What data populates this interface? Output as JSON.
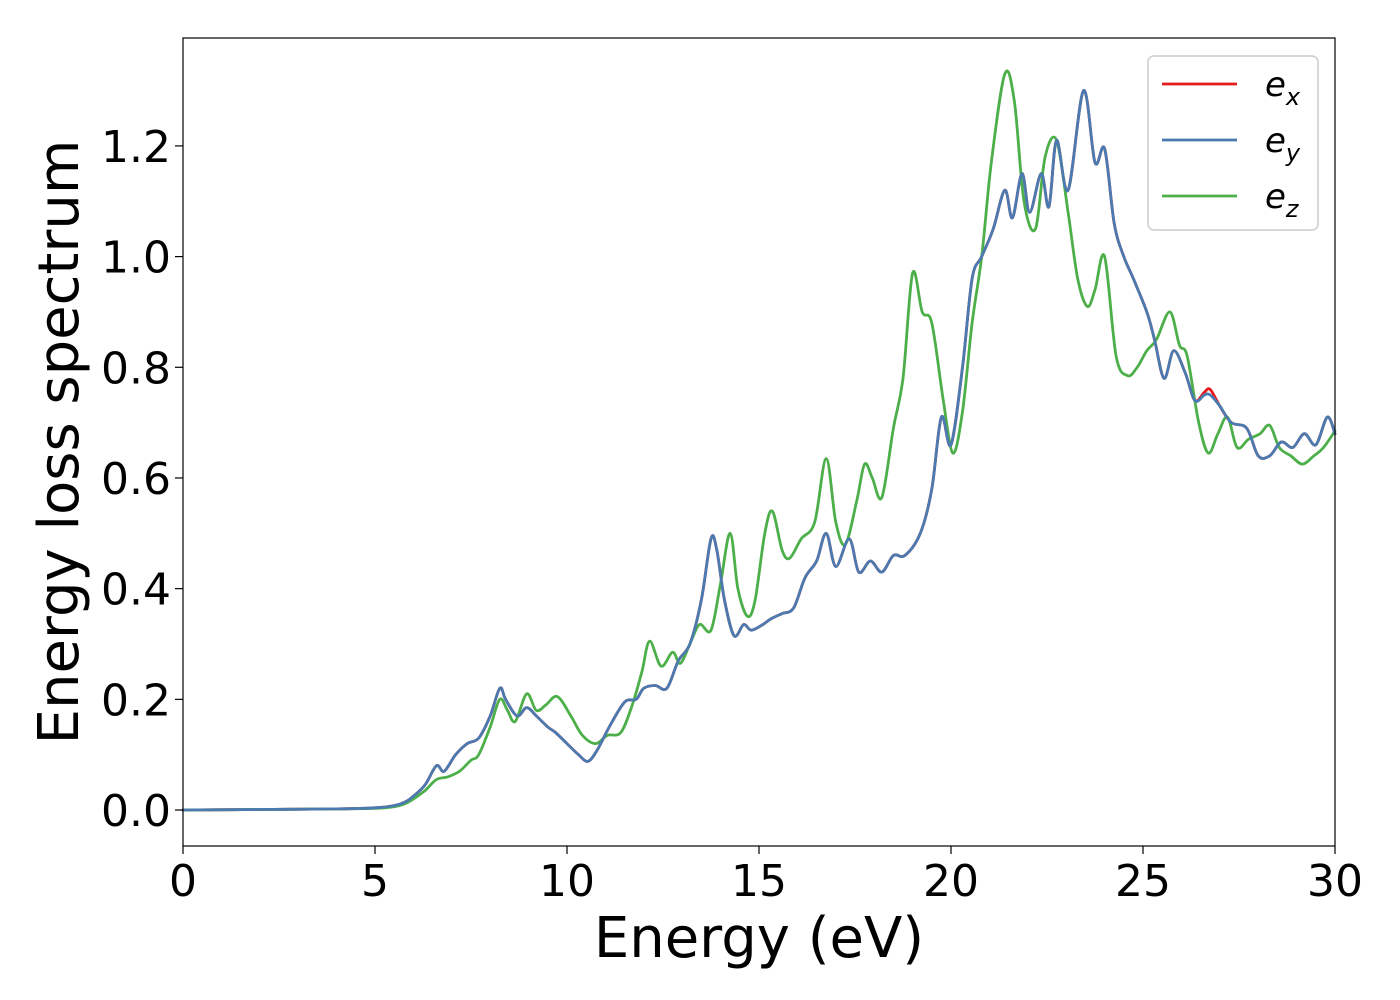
{
  "chart_data": {
    "type": "line",
    "title": "",
    "xlabel": "Energy (eV)",
    "ylabel": "Energy loss spectrum",
    "xlim": [
      0,
      30
    ],
    "ylim": [
      -0.065,
      1.395
    ],
    "xticks": [
      0,
      5,
      10,
      15,
      20,
      25,
      30
    ],
    "xtick_labels": [
      "0",
      "5",
      "10",
      "15",
      "20",
      "25",
      "30"
    ],
    "yticks": [
      0.0,
      0.2,
      0.4,
      0.6,
      0.8,
      1.0,
      1.2
    ],
    "ytick_labels": [
      "0.0",
      "0.2",
      "0.4",
      "0.6",
      "0.8",
      "1.0",
      "1.2"
    ],
    "grid": false,
    "legend_position": "top-right",
    "series": [
      {
        "name": "e_x",
        "legend_base": "e",
        "legend_sub": "x",
        "color": "#e41a1c",
        "points": [
          [
            0,
            0
          ],
          [
            2,
            0.001
          ],
          [
            4,
            0.002
          ],
          [
            5,
            0.004
          ],
          [
            5.5,
            0.008
          ],
          [
            5.8,
            0.015
          ],
          [
            6,
            0.025
          ],
          [
            6.3,
            0.045
          ],
          [
            6.6,
            0.08
          ],
          [
            6.8,
            0.07
          ],
          [
            7.1,
            0.1
          ],
          [
            7.4,
            0.12
          ],
          [
            7.7,
            0.13
          ],
          [
            8,
            0.17
          ],
          [
            8.25,
            0.22
          ],
          [
            8.4,
            0.2
          ],
          [
            8.7,
            0.17
          ],
          [
            8.95,
            0.185
          ],
          [
            9.2,
            0.17
          ],
          [
            9.5,
            0.15
          ],
          [
            9.7,
            0.14
          ],
          [
            10,
            0.12
          ],
          [
            10.3,
            0.1
          ],
          [
            10.55,
            0.088
          ],
          [
            10.8,
            0.11
          ],
          [
            11.1,
            0.15
          ],
          [
            11.5,
            0.195
          ],
          [
            11.8,
            0.2
          ],
          [
            12,
            0.22
          ],
          [
            12.3,
            0.225
          ],
          [
            12.6,
            0.22
          ],
          [
            12.9,
            0.27
          ],
          [
            13.2,
            0.3
          ],
          [
            13.5,
            0.38
          ],
          [
            13.75,
            0.49
          ],
          [
            13.9,
            0.47
          ],
          [
            14.1,
            0.38
          ],
          [
            14.35,
            0.315
          ],
          [
            14.6,
            0.335
          ],
          [
            14.8,
            0.325
          ],
          [
            15.1,
            0.335
          ],
          [
            15.3,
            0.345
          ],
          [
            15.6,
            0.355
          ],
          [
            15.9,
            0.365
          ],
          [
            16.2,
            0.42
          ],
          [
            16.5,
            0.45
          ],
          [
            16.75,
            0.5
          ],
          [
            17,
            0.44
          ],
          [
            17.35,
            0.49
          ],
          [
            17.6,
            0.43
          ],
          [
            17.9,
            0.45
          ],
          [
            18.2,
            0.43
          ],
          [
            18.5,
            0.46
          ],
          [
            18.8,
            0.46
          ],
          [
            19.2,
            0.5
          ],
          [
            19.5,
            0.58
          ],
          [
            19.75,
            0.71
          ],
          [
            20,
            0.66
          ],
          [
            20.3,
            0.8
          ],
          [
            20.55,
            0.96
          ],
          [
            20.8,
            1.0
          ],
          [
            21.1,
            1.05
          ],
          [
            21.4,
            1.12
          ],
          [
            21.6,
            1.07
          ],
          [
            21.85,
            1.15
          ],
          [
            22.05,
            1.08
          ],
          [
            22.35,
            1.15
          ],
          [
            22.55,
            1.09
          ],
          [
            22.75,
            1.21
          ],
          [
            23.05,
            1.12
          ],
          [
            23.45,
            1.3
          ],
          [
            23.75,
            1.17
          ],
          [
            24,
            1.195
          ],
          [
            24.25,
            1.06
          ],
          [
            24.5,
            1.0
          ],
          [
            24.75,
            0.96
          ],
          [
            25.1,
            0.9
          ],
          [
            25.3,
            0.85
          ],
          [
            25.55,
            0.78
          ],
          [
            25.8,
            0.83
          ],
          [
            26.1,
            0.79
          ],
          [
            26.35,
            0.74
          ],
          [
            26.6,
            0.755
          ],
          [
            26.75,
            0.76
          ],
          [
            27,
            0.73
          ],
          [
            27.3,
            0.7
          ],
          [
            27.7,
            0.69
          ],
          [
            28,
            0.64
          ],
          [
            28.3,
            0.64
          ],
          [
            28.6,
            0.665
          ],
          [
            28.9,
            0.655
          ],
          [
            29.2,
            0.68
          ],
          [
            29.5,
            0.66
          ],
          [
            29.8,
            0.71
          ],
          [
            30,
            0.68
          ]
        ]
      },
      {
        "name": "e_y",
        "legend_base": "e",
        "legend_sub": "y",
        "color": "#4a7ab0",
        "points": [
          [
            0,
            0
          ],
          [
            2,
            0.001
          ],
          [
            4,
            0.002
          ],
          [
            5,
            0.004
          ],
          [
            5.5,
            0.008
          ],
          [
            5.8,
            0.015
          ],
          [
            6,
            0.025
          ],
          [
            6.3,
            0.045
          ],
          [
            6.6,
            0.08
          ],
          [
            6.8,
            0.07
          ],
          [
            7.1,
            0.1
          ],
          [
            7.4,
            0.12
          ],
          [
            7.7,
            0.13
          ],
          [
            8,
            0.17
          ],
          [
            8.25,
            0.22
          ],
          [
            8.4,
            0.2
          ],
          [
            8.7,
            0.17
          ],
          [
            8.95,
            0.185
          ],
          [
            9.2,
            0.17
          ],
          [
            9.5,
            0.15
          ],
          [
            9.7,
            0.14
          ],
          [
            10,
            0.12
          ],
          [
            10.3,
            0.1
          ],
          [
            10.55,
            0.088
          ],
          [
            10.8,
            0.11
          ],
          [
            11.1,
            0.15
          ],
          [
            11.5,
            0.195
          ],
          [
            11.8,
            0.2
          ],
          [
            12,
            0.22
          ],
          [
            12.3,
            0.225
          ],
          [
            12.6,
            0.22
          ],
          [
            12.9,
            0.27
          ],
          [
            13.2,
            0.3
          ],
          [
            13.5,
            0.38
          ],
          [
            13.75,
            0.49
          ],
          [
            13.9,
            0.47
          ],
          [
            14.1,
            0.38
          ],
          [
            14.35,
            0.315
          ],
          [
            14.6,
            0.335
          ],
          [
            14.8,
            0.325
          ],
          [
            15.1,
            0.335
          ],
          [
            15.3,
            0.345
          ],
          [
            15.6,
            0.355
          ],
          [
            15.9,
            0.365
          ],
          [
            16.2,
            0.42
          ],
          [
            16.5,
            0.45
          ],
          [
            16.75,
            0.5
          ],
          [
            17,
            0.44
          ],
          [
            17.35,
            0.49
          ],
          [
            17.6,
            0.43
          ],
          [
            17.9,
            0.45
          ],
          [
            18.2,
            0.43
          ],
          [
            18.5,
            0.46
          ],
          [
            18.8,
            0.46
          ],
          [
            19.2,
            0.5
          ],
          [
            19.5,
            0.58
          ],
          [
            19.75,
            0.71
          ],
          [
            20,
            0.66
          ],
          [
            20.3,
            0.8
          ],
          [
            20.55,
            0.96
          ],
          [
            20.8,
            1.0
          ],
          [
            21.1,
            1.05
          ],
          [
            21.4,
            1.12
          ],
          [
            21.6,
            1.07
          ],
          [
            21.85,
            1.15
          ],
          [
            22.05,
            1.08
          ],
          [
            22.35,
            1.15
          ],
          [
            22.55,
            1.09
          ],
          [
            22.75,
            1.21
          ],
          [
            23.05,
            1.12
          ],
          [
            23.45,
            1.3
          ],
          [
            23.75,
            1.17
          ],
          [
            24,
            1.195
          ],
          [
            24.25,
            1.06
          ],
          [
            24.5,
            1.0
          ],
          [
            24.75,
            0.96
          ],
          [
            25.1,
            0.9
          ],
          [
            25.3,
            0.85
          ],
          [
            25.55,
            0.78
          ],
          [
            25.8,
            0.83
          ],
          [
            26.1,
            0.79
          ],
          [
            26.35,
            0.74
          ],
          [
            26.6,
            0.75
          ],
          [
            26.75,
            0.75
          ],
          [
            27,
            0.73
          ],
          [
            27.3,
            0.7
          ],
          [
            27.7,
            0.69
          ],
          [
            28,
            0.64
          ],
          [
            28.3,
            0.64
          ],
          [
            28.6,
            0.665
          ],
          [
            28.9,
            0.655
          ],
          [
            29.2,
            0.68
          ],
          [
            29.5,
            0.66
          ],
          [
            29.8,
            0.71
          ],
          [
            30,
            0.68
          ]
        ]
      },
      {
        "name": "e_z",
        "legend_base": "e",
        "legend_sub": "z",
        "color": "#4daf4a",
        "points": [
          [
            0,
            0
          ],
          [
            2,
            0.001
          ],
          [
            4,
            0.002
          ],
          [
            5,
            0.003
          ],
          [
            5.5,
            0.006
          ],
          [
            5.8,
            0.012
          ],
          [
            6,
            0.02
          ],
          [
            6.3,
            0.035
          ],
          [
            6.6,
            0.055
          ],
          [
            6.9,
            0.06
          ],
          [
            7.2,
            0.07
          ],
          [
            7.5,
            0.09
          ],
          [
            7.7,
            0.1
          ],
          [
            8,
            0.15
          ],
          [
            8.25,
            0.2
          ],
          [
            8.45,
            0.18
          ],
          [
            8.65,
            0.16
          ],
          [
            8.95,
            0.21
          ],
          [
            9.2,
            0.18
          ],
          [
            9.45,
            0.19
          ],
          [
            9.75,
            0.205
          ],
          [
            10.1,
            0.17
          ],
          [
            10.4,
            0.135
          ],
          [
            10.75,
            0.12
          ],
          [
            11.05,
            0.135
          ],
          [
            11.4,
            0.14
          ],
          [
            11.7,
            0.19
          ],
          [
            11.95,
            0.25
          ],
          [
            12.15,
            0.305
          ],
          [
            12.45,
            0.26
          ],
          [
            12.75,
            0.285
          ],
          [
            12.95,
            0.265
          ],
          [
            13.2,
            0.3
          ],
          [
            13.45,
            0.335
          ],
          [
            13.75,
            0.325
          ],
          [
            14,
            0.41
          ],
          [
            14.25,
            0.5
          ],
          [
            14.45,
            0.4
          ],
          [
            14.7,
            0.35
          ],
          [
            14.9,
            0.38
          ],
          [
            15.15,
            0.5
          ],
          [
            15.35,
            0.54
          ],
          [
            15.6,
            0.47
          ],
          [
            15.8,
            0.455
          ],
          [
            16.1,
            0.49
          ],
          [
            16.45,
            0.52
          ],
          [
            16.75,
            0.635
          ],
          [
            17,
            0.52
          ],
          [
            17.25,
            0.48
          ],
          [
            17.55,
            0.56
          ],
          [
            17.75,
            0.625
          ],
          [
            17.95,
            0.6
          ],
          [
            18.2,
            0.565
          ],
          [
            18.5,
            0.69
          ],
          [
            18.75,
            0.78
          ],
          [
            19,
            0.97
          ],
          [
            19.25,
            0.9
          ],
          [
            19.5,
            0.88
          ],
          [
            19.8,
            0.74
          ],
          [
            20.05,
            0.645
          ],
          [
            20.3,
            0.72
          ],
          [
            20.55,
            0.88
          ],
          [
            20.8,
            1.0
          ],
          [
            21.05,
            1.17
          ],
          [
            21.4,
            1.33
          ],
          [
            21.65,
            1.28
          ],
          [
            21.9,
            1.1
          ],
          [
            22.2,
            1.05
          ],
          [
            22.45,
            1.18
          ],
          [
            22.75,
            1.21
          ],
          [
            23.05,
            1.08
          ],
          [
            23.3,
            0.96
          ],
          [
            23.55,
            0.91
          ],
          [
            23.75,
            0.94
          ],
          [
            24,
            1.0
          ],
          [
            24.3,
            0.82
          ],
          [
            24.6,
            0.785
          ],
          [
            24.85,
            0.8
          ],
          [
            25.1,
            0.83
          ],
          [
            25.35,
            0.85
          ],
          [
            25.7,
            0.9
          ],
          [
            25.95,
            0.84
          ],
          [
            26.15,
            0.82
          ],
          [
            26.45,
            0.7
          ],
          [
            26.7,
            0.645
          ],
          [
            26.95,
            0.68
          ],
          [
            27.2,
            0.71
          ],
          [
            27.45,
            0.655
          ],
          [
            27.75,
            0.67
          ],
          [
            28.05,
            0.68
          ],
          [
            28.3,
            0.695
          ],
          [
            28.55,
            0.655
          ],
          [
            28.85,
            0.64
          ],
          [
            29.15,
            0.625
          ],
          [
            29.45,
            0.64
          ],
          [
            29.7,
            0.655
          ],
          [
            30,
            0.685
          ]
        ]
      }
    ]
  }
}
